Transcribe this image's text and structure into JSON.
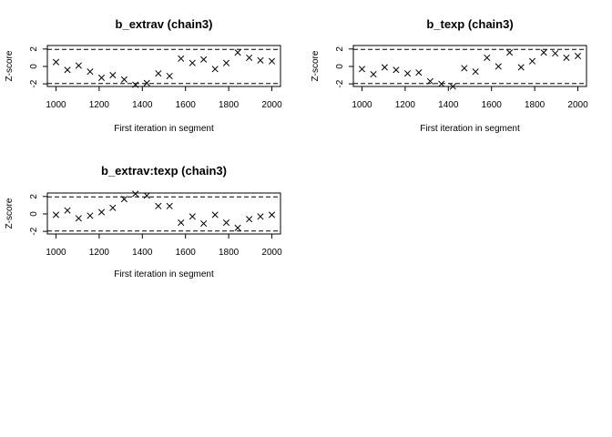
{
  "chart_data": [
    {
      "type": "scatter",
      "title": "b_extrav (chain3)",
      "xlabel": "First iteration in segment",
      "ylabel": "Z-score",
      "xlim": [
        1000,
        2000
      ],
      "ylim": [
        -2,
        2
      ],
      "xticks": [
        "1000",
        "1200",
        "1400",
        "1600",
        "1800",
        "2000"
      ],
      "yticks": [
        "-2",
        "0",
        "2"
      ],
      "reference_lines": [
        -1.96,
        1.96
      ],
      "marker": "x",
      "x": [
        1000,
        1053,
        1105,
        1158,
        1211,
        1263,
        1316,
        1368,
        1421,
        1474,
        1526,
        1579,
        1632,
        1684,
        1737,
        1789,
        1842,
        1895,
        1947,
        2000
      ],
      "y": [
        0.5,
        -0.4,
        0.1,
        -0.6,
        -1.3,
        -1.0,
        -1.5,
        -2.1,
        -1.9,
        -0.8,
        -1.1,
        0.9,
        0.4,
        0.8,
        -0.3,
        0.4,
        1.6,
        1.0,
        0.7,
        0.6
      ]
    },
    {
      "type": "scatter",
      "title": "b_texp (chain3)",
      "xlabel": "First iteration in segment",
      "ylabel": "Z-score",
      "xlim": [
        1000,
        2000
      ],
      "ylim": [
        -2,
        2
      ],
      "xticks": [
        "1000",
        "1200",
        "1400",
        "1600",
        "1800",
        "2000"
      ],
      "yticks": [
        "-2",
        "0",
        "2"
      ],
      "reference_lines": [
        -1.96,
        1.96
      ],
      "marker": "x",
      "x": [
        1000,
        1053,
        1105,
        1158,
        1211,
        1263,
        1316,
        1368,
        1421,
        1474,
        1526,
        1579,
        1632,
        1684,
        1737,
        1789,
        1842,
        1895,
        1947,
        2000
      ],
      "y": [
        -0.3,
        -0.9,
        -0.1,
        -0.4,
        -0.8,
        -0.7,
        -1.7,
        -2.0,
        -2.3,
        -0.2,
        -0.6,
        1.0,
        0.0,
        1.6,
        -0.1,
        0.6,
        1.6,
        1.5,
        1.0,
        1.2
      ]
    },
    {
      "type": "scatter",
      "title": "b_extrav:texp (chain3)",
      "xlabel": "First iteration in segment",
      "ylabel": "Z-score",
      "xlim": [
        1000,
        2000
      ],
      "ylim": [
        -2,
        2
      ],
      "xticks": [
        "1000",
        "1200",
        "1400",
        "1600",
        "1800",
        "2000"
      ],
      "yticks": [
        "-2",
        "0",
        "2"
      ],
      "reference_lines": [
        -1.96,
        1.96
      ],
      "marker": "x",
      "x": [
        1000,
        1053,
        1105,
        1158,
        1211,
        1263,
        1316,
        1368,
        1421,
        1474,
        1526,
        1579,
        1632,
        1684,
        1737,
        1789,
        1842,
        1895,
        1947,
        2000
      ],
      "y": [
        -0.1,
        0.4,
        -0.5,
        -0.2,
        0.2,
        0.7,
        1.7,
        2.3,
        2.1,
        0.9,
        0.9,
        -1.0,
        -0.3,
        -1.1,
        -0.1,
        -1.0,
        -1.6,
        -0.6,
        -0.3,
        -0.1
      ]
    }
  ]
}
